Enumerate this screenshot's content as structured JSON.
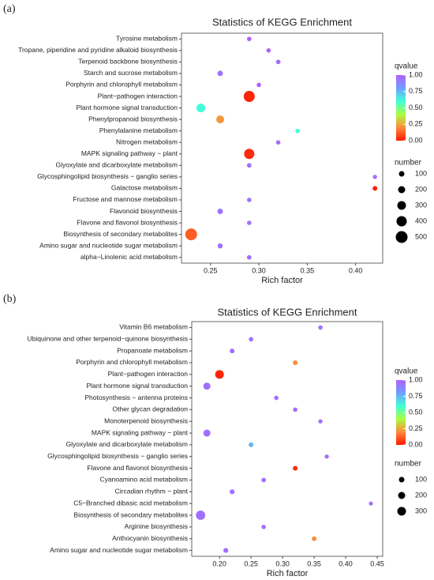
{
  "chart_data": [
    {
      "type": "bubble",
      "panel_label": "(a)",
      "title": "Statistics of KEGG Enrichment",
      "xlabel": "Rich factor",
      "categories": [
        "Tyrosine metabolism",
        "Tropane, piperidine and pyridine alkaloid biosynthesis",
        "Terpenoid backbone biosynthesis",
        "Starch and sucrose metabolism",
        "Porphyrin and chlorophyll metabolism",
        "Plant−pathogen interaction",
        "Plant hormone signal transduction",
        "Phenylpropanoid biosynthesis",
        "Phenylalanine metabolism",
        "Nitrogen metabolism",
        "MAPK signaling pathway − plant",
        "Glyoxylate and dicarboxylate metabolism",
        "Glycosphingolipid biosynthesis − ganglio series",
        "Galactose metabolism",
        "Fructose and mannose metabolism",
        "Flavonoid biosynthesis",
        "Flavone and flavonol biosynthesis",
        "Biosynthesis of secondary metabolites",
        "Amino sugar and nucleotide sugar metabolism",
        "alpha−Linolenic acid metabolism"
      ],
      "values": [
        0.29,
        0.31,
        0.32,
        0.26,
        0.3,
        0.29,
        0.24,
        0.26,
        0.34,
        0.32,
        0.29,
        0.29,
        0.42,
        0.42,
        0.29,
        0.26,
        0.29,
        0.23,
        0.26,
        0.29
      ],
      "sizes": [
        30,
        30,
        40,
        100,
        30,
        450,
        300,
        250,
        30,
        30,
        400,
        40,
        20,
        50,
        30,
        100,
        30,
        500,
        70,
        40
      ],
      "qvalues": [
        1.0,
        1.0,
        0.95,
        0.95,
        1.0,
        0.02,
        0.6,
        0.22,
        0.6,
        0.95,
        0.03,
        0.95,
        0.95,
        0.01,
        0.95,
        0.95,
        0.95,
        0.12,
        0.95,
        0.95
      ],
      "xlim": [
        0.22,
        0.428
      ],
      "xticks": [
        0.25,
        {
          "value": 0.3,
          "label": "0.30"
        },
        0.35,
        {
          "value": 0.4,
          "label": "0.40"
        }
      ],
      "color_title": "qvalue",
      "clim": [
        0,
        1
      ],
      "cticks": [
        {
          "value": 0,
          "label": "0.00"
        },
        0.25,
        {
          "value": 0.5,
          "label": "0.50"
        },
        0.75,
        {
          "value": 1,
          "label": "1.00"
        }
      ],
      "colormap": [
        "#ff1a00",
        "#ff8a3a",
        "#a8ff40",
        "#40ffd8",
        "#6f9fff",
        "#b060ff"
      ],
      "size_title": "number",
      "size_legend": [
        100,
        200,
        300,
        400,
        500
      ]
    },
    {
      "type": "bubble",
      "panel_label": "(b)",
      "title": "Statistics of KEGG Enrichment",
      "xlabel": "Rich factor",
      "categories": [
        "Vitamin B6 metabolism",
        "Ubiquinone and other terpenoid−quinone biosynthesis",
        "Propanoate metabolism",
        "Porphyrin and chlorophyll metabolism",
        "Plant−pathogen interaction",
        "Plant hormone signal transduction",
        "Photosynthesis − antenna proteins",
        "Other glycan degradation",
        "Monoterpenoid biosynthesis",
        "MAPK signaling pathway − plant",
        "Glyoxylate and dicarboxylate metabolism",
        "Glycosphingolipid biosynthesis − ganglio series",
        "Flavone and flavonol biosynthesis",
        "Cyanoamino acid metabolism",
        "Circadian rhythm − plant",
        "C5−Branched dibasic acid metabolism",
        "Biosynthesis of secondary metabolites",
        "Arginine biosynthesis",
        "Anthocyanin biosynthesis",
        "Amino sugar and nucleotide sugar metabolism"
      ],
      "values": [
        0.36,
        0.25,
        0.22,
        0.32,
        0.2,
        0.18,
        0.29,
        0.32,
        0.36,
        0.18,
        0.25,
        0.37,
        0.32,
        0.27,
        0.22,
        0.44,
        0.17,
        0.27,
        0.35,
        0.21
      ],
      "sizes": [
        30,
        30,
        50,
        50,
        300,
        200,
        30,
        30,
        20,
        200,
        50,
        20,
        50,
        40,
        60,
        10,
        340,
        30,
        40,
        60
      ],
      "qvalues": [
        0.95,
        0.95,
        0.95,
        0.2,
        0.02,
        0.95,
        0.95,
        0.95,
        0.95,
        0.95,
        0.75,
        0.95,
        0.03,
        0.95,
        0.95,
        0.95,
        0.95,
        0.95,
        0.2,
        0.95
      ],
      "xlim": [
        0.156,
        0.4587
      ],
      "xticks": [
        {
          "value": 0.2,
          "label": "0.20"
        },
        0.25,
        {
          "value": 0.3,
          "label": "0.30"
        },
        0.35,
        {
          "value": 0.4,
          "label": "0.40"
        },
        0.45
      ],
      "color_title": "qvalue",
      "clim": [
        0,
        1
      ],
      "cticks": [
        {
          "value": 0,
          "label": "0.00"
        },
        0.25,
        {
          "value": 0.5,
          "label": "0.50"
        },
        0.75,
        {
          "value": 1,
          "label": "1.00"
        }
      ],
      "colormap": [
        "#ff1a00",
        "#ff8a3a",
        "#a8ff40",
        "#40ffd8",
        "#6f9fff",
        "#b060ff"
      ],
      "size_title": "number",
      "size_legend": [
        100,
        200,
        300
      ]
    }
  ]
}
